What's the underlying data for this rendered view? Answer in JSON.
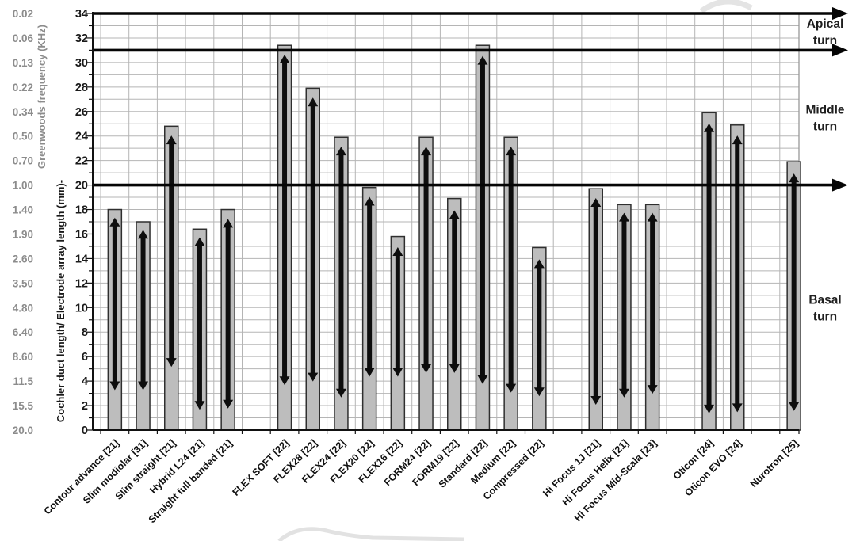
{
  "chart_data": {
    "type": "bar",
    "orientation": "vertical",
    "primary_ylabel": "Cochler duct length/ Electrode array length (mm)-",
    "secondary_ylabel": "Greenwoods frequency (KHz)",
    "ylim": [
      0,
      34
    ],
    "grid": {
      "horizontal_step_mm": 1,
      "vertical": "per-category-slot",
      "slot_count": 25
    },
    "mm_tick_labels": [
      "34",
      "32",
      "30",
      "28",
      "26",
      "24",
      "22",
      "20",
      "18",
      "16",
      "14",
      "12",
      "10",
      "8",
      "6",
      "4",
      "2",
      "0"
    ],
    "frequency_tick_labels": [
      "0.02",
      "0.06",
      "0.13",
      "0.22",
      "0.34",
      "0.50",
      "0.70",
      "1.00",
      "1.40",
      "1.90",
      "2.60",
      "3.50",
      "4.80",
      "6.40",
      "8.60",
      "11.5",
      "15.5",
      "20.0"
    ],
    "turn_boundary_lines_mm": [
      34,
      31,
      20
    ],
    "turn_labels": [
      {
        "text": "Apical turn",
        "between_mm": [
          31,
          34
        ]
      },
      {
        "text": "Middle turn",
        "between_mm": [
          20,
          31
        ]
      },
      {
        "text": "Basal turn",
        "between_mm": [
          0,
          20
        ]
      }
    ],
    "categories": [
      {
        "label": "Contour advance [21]",
        "slot": 0,
        "bar_top_mm": 18.0,
        "arrow_mm": [
          3.2,
          17.4
        ]
      },
      {
        "label": "Slim modiolar [31]",
        "slot": 1,
        "bar_top_mm": 17.0,
        "arrow_mm": [
          3.2,
          16.4
        ]
      },
      {
        "label": "Slim straight [21]",
        "slot": 2,
        "bar_top_mm": 24.8,
        "arrow_mm": [
          5.1,
          24.1
        ]
      },
      {
        "label": "Hybrid L24 [21]",
        "slot": 3,
        "bar_top_mm": 16.4,
        "arrow_mm": [
          1.6,
          15.8
        ]
      },
      {
        "label": "Straight full banded [21]",
        "slot": 4,
        "bar_top_mm": 18.0,
        "arrow_mm": [
          1.7,
          17.3
        ]
      },
      {
        "label": "FLEX SOFT [22]",
        "slot": 6,
        "bar_top_mm": 31.4,
        "arrow_mm": [
          3.6,
          30.7
        ]
      },
      {
        "label": "FLEX28 [22]",
        "slot": 7,
        "bar_top_mm": 27.9,
        "arrow_mm": [
          3.9,
          27.2
        ]
      },
      {
        "label": "FLEX24 [22]",
        "slot": 8,
        "bar_top_mm": 23.9,
        "arrow_mm": [
          2.6,
          23.2
        ]
      },
      {
        "label": "FLEX20 [22]",
        "slot": 9,
        "bar_top_mm": 19.8,
        "arrow_mm": [
          4.3,
          19.1
        ]
      },
      {
        "label": "FLEX16 [22]",
        "slot": 10,
        "bar_top_mm": 15.8,
        "arrow_mm": [
          4.3,
          15.0
        ]
      },
      {
        "label": "FORM24 [22]",
        "slot": 11,
        "bar_top_mm": 23.9,
        "arrow_mm": [
          4.6,
          23.2
        ]
      },
      {
        "label": "FORM19 [22]",
        "slot": 12,
        "bar_top_mm": 18.9,
        "arrow_mm": [
          4.6,
          18.0
        ]
      },
      {
        "label": "Standard [22]",
        "slot": 13,
        "bar_top_mm": 31.4,
        "arrow_mm": [
          3.7,
          30.6
        ]
      },
      {
        "label": "Medium [22]",
        "slot": 14,
        "bar_top_mm": 23.9,
        "arrow_mm": [
          3.0,
          23.2
        ]
      },
      {
        "label": "Compressed [22]",
        "slot": 15,
        "bar_top_mm": 14.9,
        "arrow_mm": [
          2.7,
          14.0
        ]
      },
      {
        "label": "Hi Focus 1J [21]",
        "slot": 17,
        "bar_top_mm": 19.7,
        "arrow_mm": [
          2.0,
          19.0
        ]
      },
      {
        "label": "Hi Focus Helix [21]",
        "slot": 18,
        "bar_top_mm": 18.4,
        "arrow_mm": [
          2.6,
          17.8
        ]
      },
      {
        "label": "Hi Focus Mid-Scala [23]",
        "slot": 19,
        "bar_top_mm": 18.4,
        "arrow_mm": [
          2.9,
          17.8
        ]
      },
      {
        "label": "Oticon [24]",
        "slot": 21,
        "bar_top_mm": 25.9,
        "arrow_mm": [
          1.3,
          25.1
        ]
      },
      {
        "label": "Oticon EVO [24]",
        "slot": 22,
        "bar_top_mm": 24.9,
        "arrow_mm": [
          1.4,
          24.1
        ]
      },
      {
        "label": "Nurotron [25]",
        "slot": 24,
        "bar_top_mm": 21.9,
        "arrow_mm": [
          1.5,
          21.0
        ]
      }
    ]
  },
  "colors": {
    "background": "#ffffff",
    "bar_fill": "#bdbdbd",
    "bar_border": "#2f2f2f",
    "arrow_black": "#0d0d0d",
    "grid_line": "#b5b5b5",
    "plot_border": "#999999",
    "axis_line": "#111111",
    "boundary_line": "#050505",
    "mm_text": "#1a1a1a",
    "freq_text": "#8c8c8c",
    "category_text": "#111111",
    "turn_text": "#1f1f1f",
    "watermark": "#d8d8d8"
  }
}
